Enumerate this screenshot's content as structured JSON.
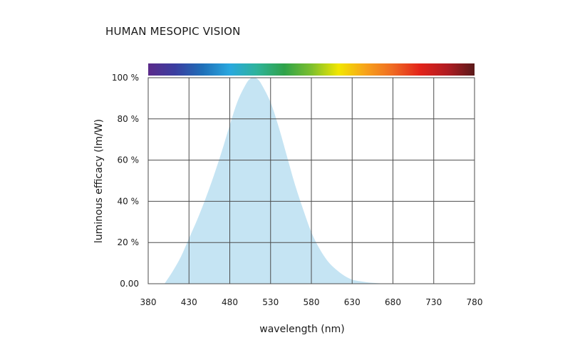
{
  "chart_data": {
    "type": "area",
    "title": "HUMAN MESOPIC VISION",
    "xlabel": "wavelength (nm)",
    "ylabel": "luminous efficacy (lm/W)",
    "x_ticks": [
      "380",
      "430",
      "480",
      "530",
      "580",
      "630",
      "680",
      "730",
      "780"
    ],
    "y_ticks": [
      "0.00",
      "20 %",
      "40 %",
      "60 %",
      "80 %",
      "100 %"
    ],
    "xlim": [
      380,
      780
    ],
    "ylim": [
      0,
      100
    ],
    "grid": true,
    "fill_color": "#c5e4f3",
    "spectrum_colors": [
      "#5b2a8a",
      "#3a3ea0",
      "#1f6fb8",
      "#29a8df",
      "#2fb39a",
      "#2fa24a",
      "#7cbf2e",
      "#f2e600",
      "#f7a21b",
      "#ef6a23",
      "#e2231a",
      "#b01c22",
      "#5a1a1a"
    ],
    "series": [
      {
        "x": [
          400,
          410,
          420,
          430,
          440,
          450,
          460,
          470,
          480,
          490,
          500,
          505,
          510,
          515,
          520,
          530,
          540,
          550,
          560,
          570,
          580,
          590,
          600,
          610,
          620,
          630,
          640,
          650,
          660,
          670,
          680
        ],
        "values": [
          0,
          6,
          13,
          22,
          31,
          41,
          52,
          64,
          77,
          89,
          97,
          99.5,
          100,
          99,
          96,
          88,
          76,
          62,
          48,
          36,
          25,
          17,
          11,
          7,
          4,
          2,
          1.2,
          0.6,
          0.3,
          0.1,
          0
        ]
      }
    ]
  }
}
